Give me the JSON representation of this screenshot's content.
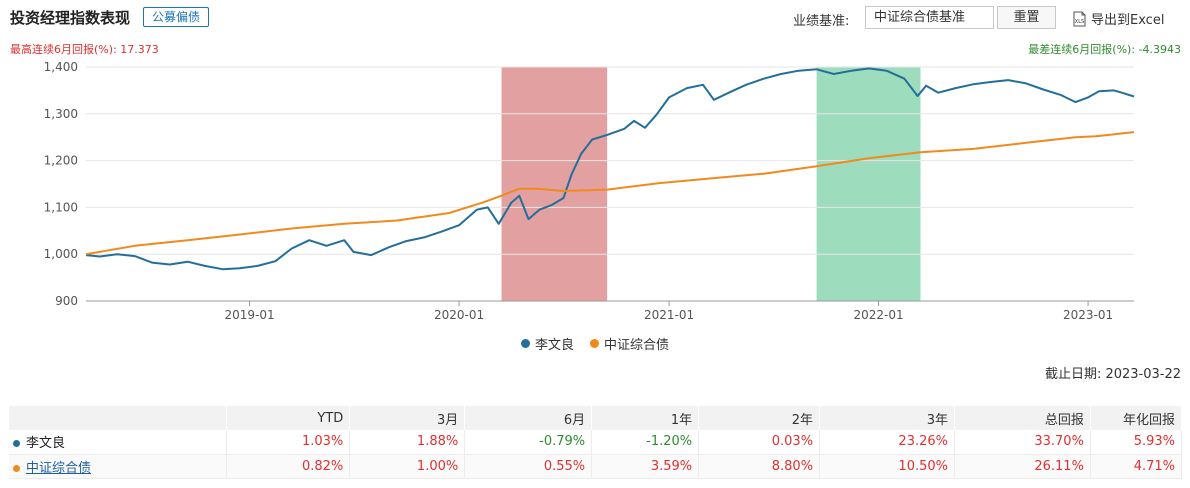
{
  "header": {
    "title": "投资经理指数表现",
    "badge": "公募偏债",
    "bench_label": "业绩基准:",
    "bench_value": "中证综合债基准",
    "reset_label": "重置",
    "export_label": "导出到Excel",
    "export_icon": "xls-file-icon"
  },
  "stats": {
    "best_6m": "最高连续6月回报(%): 17.373",
    "worst_6m": "最差连续6月回报(%): -4.3943"
  },
  "as_of": "截止日期: 2023-03-22",
  "colors": {
    "series_main": "#236f9a",
    "series_bench": "#f08a1c",
    "band_best": "#d98080",
    "band_worst": "#7ed0a8",
    "positive": "#e03030",
    "negative": "#2e8b2e"
  },
  "chart_data": {
    "type": "line",
    "x_range": [
      "2018-03-22",
      "2023-03-22"
    ],
    "ylim": [
      900,
      1400
    ],
    "yticks": [
      900,
      1000,
      1100,
      1200,
      1300,
      1400
    ],
    "yticks_labels": [
      "900",
      "1,000",
      "1,100",
      "1,200",
      "1,300",
      "1,400"
    ],
    "xticks": [
      "2019-01-01",
      "2020-01-01",
      "2021-01-01",
      "2022-01-01",
      "2023-01-01"
    ],
    "xticks_labels": [
      "2019-01",
      "2020-01",
      "2021-01",
      "2022-01",
      "2023-01"
    ],
    "grid": "horizontal",
    "legend_position": "bottom-center",
    "bands": [
      {
        "start": "2020-03-15",
        "end": "2020-09-15",
        "kind": "best"
      },
      {
        "start": "2021-09-15",
        "end": "2022-03-15",
        "kind": "worst"
      }
    ],
    "series": [
      {
        "name": "李文良",
        "color_key": "series_main",
        "points": [
          [
            "2018-03-22",
            998
          ],
          [
            "2018-04-15",
            995
          ],
          [
            "2018-05-15",
            1000
          ],
          [
            "2018-06-15",
            996
          ],
          [
            "2018-07-15",
            982
          ],
          [
            "2018-08-15",
            978
          ],
          [
            "2018-09-15",
            984
          ],
          [
            "2018-10-15",
            975
          ],
          [
            "2018-11-15",
            968
          ],
          [
            "2018-12-15",
            970
          ],
          [
            "2019-01-15",
            975
          ],
          [
            "2019-02-15",
            985
          ],
          [
            "2019-03-15",
            1012
          ],
          [
            "2019-04-15",
            1030
          ],
          [
            "2019-05-15",
            1018
          ],
          [
            "2019-06-15",
            1030
          ],
          [
            "2019-07-01",
            1005
          ],
          [
            "2019-08-01",
            998
          ],
          [
            "2019-09-01",
            1015
          ],
          [
            "2019-10-01",
            1028
          ],
          [
            "2019-11-01",
            1036
          ],
          [
            "2019-12-01",
            1048
          ],
          [
            "2020-01-01",
            1062
          ],
          [
            "2020-02-01",
            1095
          ],
          [
            "2020-02-20",
            1100
          ],
          [
            "2020-03-10",
            1065
          ],
          [
            "2020-04-01",
            1110
          ],
          [
            "2020-04-15",
            1125
          ],
          [
            "2020-05-01",
            1075
          ],
          [
            "2020-05-20",
            1095
          ],
          [
            "2020-06-10",
            1105
          ],
          [
            "2020-07-01",
            1120
          ],
          [
            "2020-07-15",
            1170
          ],
          [
            "2020-08-01",
            1215
          ],
          [
            "2020-08-20",
            1245
          ],
          [
            "2020-09-15",
            1255
          ],
          [
            "2020-10-15",
            1268
          ],
          [
            "2020-11-01",
            1285
          ],
          [
            "2020-11-20",
            1270
          ],
          [
            "2020-12-10",
            1298
          ],
          [
            "2021-01-01",
            1335
          ],
          [
            "2021-02-01",
            1355
          ],
          [
            "2021-03-01",
            1362
          ],
          [
            "2021-03-20",
            1330
          ],
          [
            "2021-04-15",
            1345
          ],
          [
            "2021-05-15",
            1362
          ],
          [
            "2021-06-15",
            1375
          ],
          [
            "2021-07-15",
            1385
          ],
          [
            "2021-08-15",
            1392
          ],
          [
            "2021-09-15",
            1395
          ],
          [
            "2021-10-15",
            1385
          ],
          [
            "2021-11-15",
            1392
          ],
          [
            "2021-12-15",
            1397
          ],
          [
            "2022-01-15",
            1392
          ],
          [
            "2022-02-15",
            1375
          ],
          [
            "2022-03-10",
            1338
          ],
          [
            "2022-03-25",
            1360
          ],
          [
            "2022-04-15",
            1345
          ],
          [
            "2022-05-15",
            1355
          ],
          [
            "2022-06-15",
            1363
          ],
          [
            "2022-07-15",
            1368
          ],
          [
            "2022-08-15",
            1372
          ],
          [
            "2022-09-15",
            1365
          ],
          [
            "2022-10-15",
            1352
          ],
          [
            "2022-11-15",
            1340
          ],
          [
            "2022-12-10",
            1325
          ],
          [
            "2023-01-01",
            1335
          ],
          [
            "2023-01-20",
            1348
          ],
          [
            "2023-02-15",
            1350
          ],
          [
            "2023-03-01",
            1345
          ],
          [
            "2023-03-22",
            1337
          ]
        ]
      },
      {
        "name": "中证综合债",
        "color_key": "series_bench",
        "points": [
          [
            "2018-03-22",
            1000
          ],
          [
            "2018-06-15",
            1018
          ],
          [
            "2018-09-15",
            1030
          ],
          [
            "2018-12-15",
            1042
          ],
          [
            "2019-03-15",
            1055
          ],
          [
            "2019-06-15",
            1065
          ],
          [
            "2019-09-15",
            1072
          ],
          [
            "2019-12-15",
            1088
          ],
          [
            "2020-02-15",
            1112
          ],
          [
            "2020-03-15",
            1125
          ],
          [
            "2020-04-15",
            1140
          ],
          [
            "2020-05-15",
            1140
          ],
          [
            "2020-07-01",
            1135
          ],
          [
            "2020-09-15",
            1138
          ],
          [
            "2020-12-15",
            1152
          ],
          [
            "2021-03-15",
            1162
          ],
          [
            "2021-06-15",
            1172
          ],
          [
            "2021-09-15",
            1188
          ],
          [
            "2021-12-15",
            1205
          ],
          [
            "2022-03-15",
            1218
          ],
          [
            "2022-06-15",
            1225
          ],
          [
            "2022-09-15",
            1238
          ],
          [
            "2022-12-10",
            1250
          ],
          [
            "2023-01-15",
            1252
          ],
          [
            "2023-03-22",
            1261
          ]
        ]
      }
    ]
  },
  "table": {
    "headers": [
      "",
      "YTD",
      "3月",
      "6月",
      "1年",
      "2年",
      "3年",
      "总回报",
      "年化回报"
    ],
    "rows": [
      {
        "name": "李文良",
        "color_key": "series_main",
        "values": [
          "1.03%",
          "1.88%",
          "-0.79%",
          "-1.20%",
          "0.03%",
          "23.26%",
          "33.70%",
          "5.93%"
        ]
      },
      {
        "name": "中证综合债",
        "color_key": "series_bench",
        "values": [
          "0.82%",
          "1.00%",
          "0.55%",
          "3.59%",
          "8.80%",
          "10.50%",
          "26.11%",
          "4.71%"
        ]
      }
    ]
  }
}
